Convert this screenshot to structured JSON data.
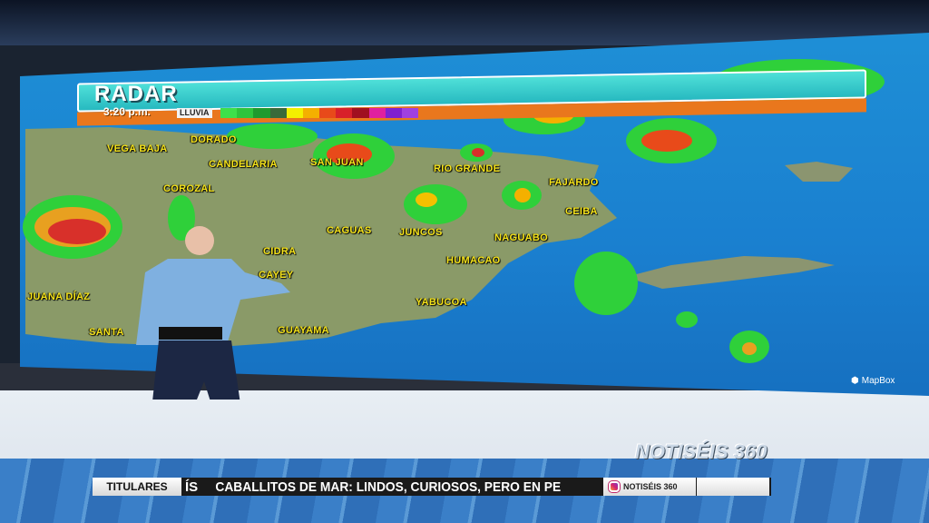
{
  "graphic": {
    "title": "RADAR",
    "time": "3:20 p.m.",
    "legend_label": "LLUVIA",
    "legend_colors": [
      "#3ee04a",
      "#2fc43c",
      "#1f9a2e",
      "#3a6a3a",
      "#f4f000",
      "#f4b000",
      "#e84a1a",
      "#d8202a",
      "#a01020",
      "#e020a0",
      "#8020d0",
      "#a040e0"
    ]
  },
  "map": {
    "labels": [
      "VEGA BAJA",
      "DORADO",
      "CANDELARIA",
      "SAN JUAN",
      "RIO GRANDE",
      "COROZAL",
      "FAJARDO",
      "CEIBA",
      "CAGUAS",
      "JUNCOS",
      "NAGUABO",
      "CIDRA",
      "CAYEY",
      "HUMACAO",
      "YABUCOA",
      "JUANA DÍAZ",
      "SANTA",
      "GUAYAMA"
    ],
    "attribution": "MapBox"
  },
  "ticker": {
    "section": "TITULARES",
    "prev_fragment": "ÍS",
    "headline": "CABALLITOS DE MAR: LINDOS, CURIOSOS, PERO EN PE",
    "social_handle": "NOTISÉIS 360"
  },
  "logo": "NOTISÉIS 360"
}
